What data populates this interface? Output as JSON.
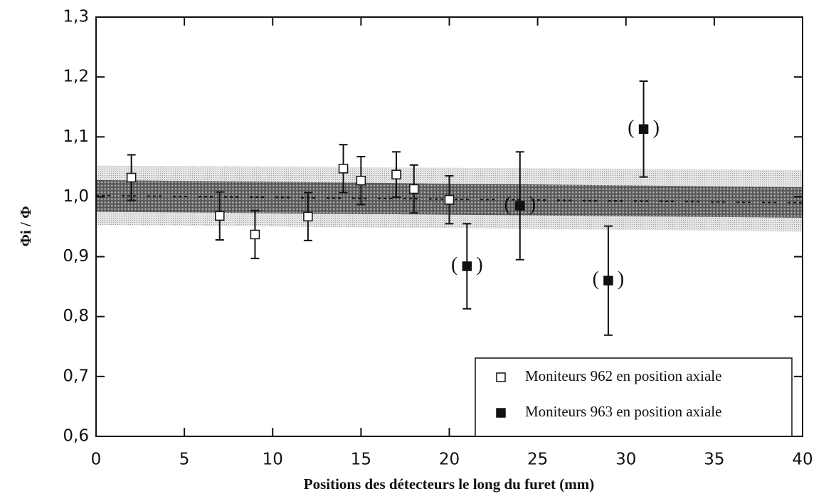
{
  "chart_data": {
    "type": "scatter",
    "xlabel": "Positions des détecteurs le long du furet (mm)",
    "ylabel": "Φi / Φ",
    "xlim": [
      0,
      40
    ],
    "ylim": [
      0.6,
      1.3
    ],
    "xticks": [
      0,
      5,
      10,
      15,
      20,
      25,
      30,
      35,
      40
    ],
    "yticks": [
      {
        "value": 0.6,
        "label": "0,6"
      },
      {
        "value": 0.7,
        "label": "0,7"
      },
      {
        "value": 0.8,
        "label": "0,8"
      },
      {
        "value": 0.9,
        "label": "0,9"
      },
      {
        "value": 1.0,
        "label": "1,0"
      },
      {
        "value": 1.1,
        "label": "1,1"
      },
      {
        "value": 1.2,
        "label": "1,2"
      },
      {
        "value": 1.3,
        "label": "1,3"
      }
    ],
    "fit": {
      "x": [
        0,
        40
      ],
      "center": [
        1.002,
        0.99
      ],
      "inner_band": {
        "lower": [
          0.975,
          0.965
        ],
        "upper": [
          1.028,
          1.016
        ]
      },
      "outer_band": {
        "lower": [
          0.953,
          0.942
        ],
        "upper": [
          1.052,
          1.045
        ]
      }
    },
    "legend": "bottom-right",
    "series": [
      {
        "name": "Moniteurs 962 en position axiale",
        "marker": "open-square",
        "color": "#111111",
        "x": [
          2,
          7,
          9,
          12,
          14,
          15,
          17,
          18,
          20
        ],
        "values": [
          1.032,
          0.968,
          0.937,
          0.967,
          1.047,
          1.027,
          1.037,
          1.013,
          0.995
        ],
        "errors": [
          0.038,
          0.04,
          0.04,
          0.04,
          0.04,
          0.04,
          0.038,
          0.04,
          0.04
        ]
      },
      {
        "name": "Moniteurs 963 en position axiale",
        "marker": "filled-square",
        "color": "#111111",
        "bracket_labels": [
          "(",
          ")"
        ],
        "x": [
          21,
          24,
          29,
          31
        ],
        "values": [
          0.884,
          0.985,
          0.86,
          1.113
        ],
        "errors": [
          0.071,
          0.09,
          0.091,
          0.08
        ]
      }
    ]
  }
}
